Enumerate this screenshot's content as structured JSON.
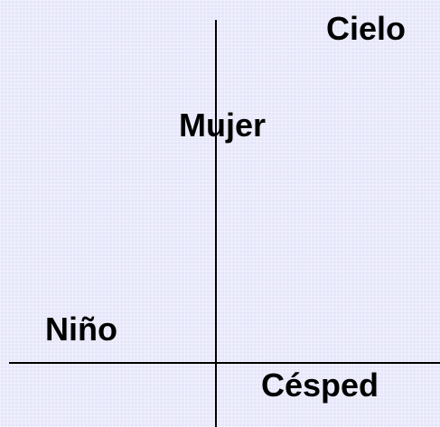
{
  "labels": {
    "top_right": "Cielo",
    "upper_center": "Mujer",
    "lower_left": "Niño",
    "bottom_right": "Césped"
  }
}
